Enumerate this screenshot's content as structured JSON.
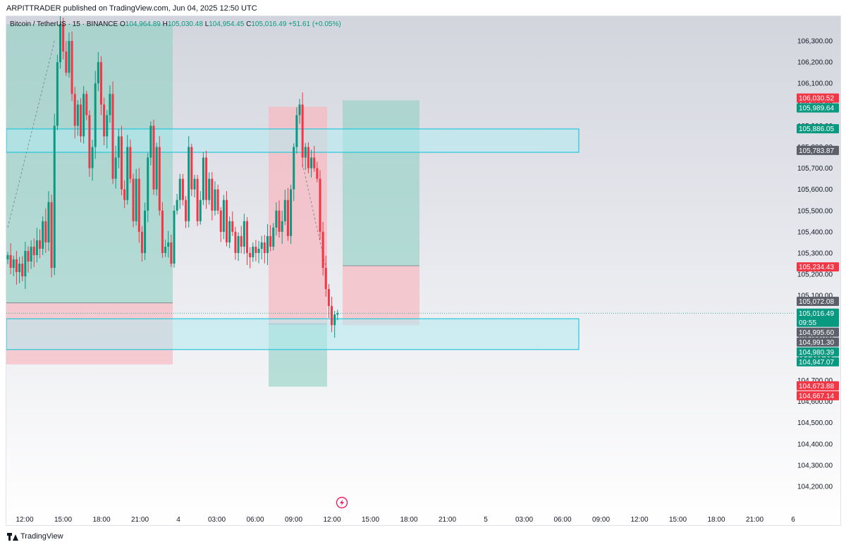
{
  "header": {
    "publisher_text": "ARPITTRADER published on TradingView.com, Jun 04, 2025 12:50 UTC"
  },
  "legend": {
    "symbol": "Bitcoin / TetherUS · 15 · BINANCE",
    "open_label": "O",
    "open": "104,964.89",
    "high_label": "H",
    "high": "105,030.48",
    "low_label": "L",
    "low": "104,954.45",
    "close_label": "C",
    "close": "105,016.49",
    "change": "+51.61 (+0.05%)"
  },
  "footer": {
    "brand": "TradingView",
    "logo_icon": "tradingview-logo-icon"
  },
  "colors": {
    "up": "#089981",
    "down": "#f23645",
    "zone_stroke": "#26c6da",
    "zone_fill": "#b2ebf2",
    "profit_fill": "#8fd1c3",
    "loss_fill": "#f7b9c1",
    "price_line": "#089981",
    "grey_label": "#5d606b"
  },
  "chart_data": {
    "type": "candlestick",
    "symbol": "Bitcoin / TetherUS",
    "interval": "15",
    "exchange": "BINANCE",
    "ylim": [
      104130,
      106370
    ],
    "x_ticks": [
      "12:00",
      "15:00",
      "18:00",
      "21:00",
      "4",
      "03:00",
      "06:00",
      "09:00",
      "12:00",
      "15:00",
      "18:00",
      "21:00",
      "5",
      "03:00",
      "06:00",
      "09:00",
      "12:00",
      "15:00",
      "18:00",
      "21:00",
      "6"
    ],
    "y_ticks": [
      "104,200.00",
      "104,300.00",
      "104,400.00",
      "104,500.00",
      "104,600.00",
      "104,700.00",
      "104,800.00",
      "104,900.00",
      "105,000.00",
      "105,100.00",
      "105,200.00",
      "105,300.00",
      "105,400.00",
      "105,500.00",
      "105,600.00",
      "105,700.00",
      "105,800.00",
      "105,900.00",
      "106,000.00",
      "106,100.00",
      "106,200.00",
      "106,300.00"
    ],
    "closes": [
      105290,
      105230,
      105270,
      105210,
      105250,
      105190,
      105310,
      105260,
      105330,
      105290,
      105360,
      105320,
      105450,
      105350,
      105540,
      105230,
      105900,
      106200,
      106380,
      106250,
      106150,
      106300,
      106050,
      105900,
      106000,
      105850,
      106050,
      105950,
      105700,
      105800,
      106100,
      106200,
      106000,
      105850,
      105950,
      106050,
      105650,
      105750,
      105850,
      105600,
      105550,
      105800,
      105650,
      105450,
      105650,
      105400,
      105300,
      105500,
      105750,
      105900,
      105600,
      105800,
      105500,
      105300,
      105330,
      105350,
      105250,
      105500,
      105550,
      105650,
      105550,
      105450,
      105800,
      105600,
      105650,
      105450,
      105550,
      105750,
      105550,
      105650,
      105500,
      105600,
      105500,
      105400,
      105550,
      105350,
      105450,
      105400,
      105300,
      105380,
      105330,
      105450,
      105300,
      105280,
      105330,
      105300,
      105320,
      105350,
      105300,
      105380,
      105330,
      105420,
      105500,
      105400,
      105450,
      105550,
      105380,
      105600,
      105800,
      105950,
      106000,
      105750,
      105800,
      105700,
      105750,
      105700,
      105650,
      105400,
      105230,
      105130,
      105050,
      104960,
      105010,
      105016
    ],
    "zones": [
      {
        "from": 105775,
        "to": 105885
      },
      {
        "from": 104990,
        "to": 104845
      }
    ],
    "positions": [
      {
        "entry": 105065,
        "target": 106380,
        "stop": 104775
      },
      {
        "entry": 104965,
        "target": 105990,
        "stop": 104670
      },
      {
        "entry": 105240,
        "target": 106020,
        "stop": 104960
      }
    ],
    "price_labels": [
      {
        "text": "106,030.52",
        "price": 106030.52,
        "color": "#f23645"
      },
      {
        "text": "105,989.64",
        "price": 105989.64,
        "color": "#089981"
      },
      {
        "text": "105,886.05",
        "price": 105886.05,
        "color": "#089981"
      },
      {
        "text": "105,783.87",
        "price": 105783.87,
        "color": "#5d606b"
      },
      {
        "text": "105,234.43",
        "price": 105234.43,
        "color": "#f23645"
      },
      {
        "text": "105,072.08",
        "price": 105072.08,
        "color": "#5d606b"
      },
      {
        "text": "105,016.49",
        "price": 105016.49,
        "color": "#089981",
        "sub": "09:55"
      },
      {
        "text": "104,995.60",
        "price": 104995.6,
        "color": "#5d606b"
      },
      {
        "text": "104,991.30",
        "price": 104991.3,
        "color": "#5d606b"
      },
      {
        "text": "104,980.39",
        "price": 104980.39,
        "color": "#089981"
      },
      {
        "text": "104,947.07",
        "price": 104947.07,
        "color": "#089981"
      },
      {
        "text": "104,673.88",
        "price": 104673.88,
        "color": "#f23645"
      },
      {
        "text": "104,667.14",
        "price": 104667.14,
        "color": "#f23645"
      }
    ],
    "last_price": 105016.49,
    "marker_icon": "lightning-icon"
  }
}
